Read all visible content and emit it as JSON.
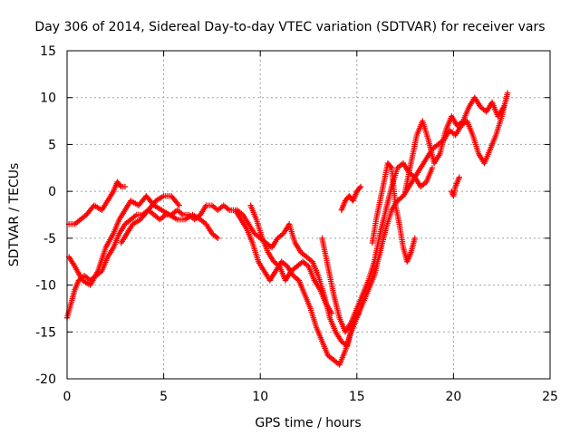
{
  "chart_data": {
    "type": "scatter",
    "title": "Day 306 of 2014, Sidereal Day-to-day VTEC variation (SDTVAR) for receiver vars",
    "xlabel": "GPS time / hours",
    "ylabel": "SDTVAR / TECUs",
    "xlim": [
      0,
      25
    ],
    "ylim": [
      -20,
      15
    ],
    "xticks": [
      "0",
      "5",
      "10",
      "15",
      "20",
      "25"
    ],
    "yticks": [
      "15",
      "10",
      "5",
      "0",
      "-5",
      "-10",
      "-15",
      "-20"
    ],
    "grid": true,
    "marker": "+",
    "series": [
      {
        "name": "trace-a",
        "color": "#ff0000",
        "x": [
          0.0,
          0.2,
          0.4,
          0.6,
          0.9,
          1.2,
          1.5,
          1.8,
          2.1,
          2.4,
          2.7,
          3.0,
          3.3,
          3.6,
          3.9,
          4.2,
          4.5,
          4.8,
          5.1,
          5.4,
          5.7,
          6.0,
          6.3,
          6.6,
          6.9,
          7.2,
          7.5,
          7.8,
          8.1,
          8.4,
          8.7,
          9.0,
          9.3,
          9.6,
          9.9,
          10.2,
          10.5,
          10.8,
          11.1,
          11.4,
          11.7,
          12.0,
          12.3,
          12.6,
          12.9,
          13.2,
          13.5,
          13.8,
          14.1,
          14.4,
          14.7,
          15.0,
          15.3,
          15.6,
          15.9,
          16.2,
          16.5,
          16.8,
          17.1,
          17.4,
          17.7,
          18.0,
          18.3,
          18.6,
          18.9,
          19.2,
          19.5,
          19.8,
          20.1,
          20.4,
          20.7,
          21.0,
          21.3,
          21.6,
          21.9,
          22.2,
          22.5,
          22.8
        ],
        "y": [
          -13.5,
          -12.0,
          -10.5,
          -9.5,
          -9.0,
          -9.5,
          -9.0,
          -8.5,
          -7.0,
          -6.0,
          -4.5,
          -3.5,
          -3.0,
          -2.5,
          -2.5,
          -2.0,
          -2.5,
          -3.0,
          -2.5,
          -2.5,
          -2.0,
          -2.5,
          -2.5,
          -3.0,
          -2.5,
          -1.5,
          -1.5,
          -2.0,
          -1.5,
          -2.0,
          -2.0,
          -3.0,
          -4.0,
          -5.5,
          -7.5,
          -8.5,
          -9.5,
          -8.5,
          -7.5,
          -8.0,
          -9.0,
          -9.5,
          -11.0,
          -12.5,
          -14.5,
          -16.0,
          -17.5,
          -18.0,
          -18.5,
          -17.0,
          -15.0,
          -13.5,
          -12.0,
          -10.5,
          -9.0,
          -6.5,
          -4.0,
          -2.0,
          -1.0,
          -0.5,
          0.5,
          1.5,
          2.5,
          3.5,
          4.5,
          5.0,
          5.5,
          6.5,
          6.0,
          7.0,
          7.5,
          6.0,
          4.0,
          3.0,
          4.5,
          6.0,
          8.0,
          10.5
        ]
      },
      {
        "name": "trace-b",
        "color": "#ff0000",
        "x": [
          0.1,
          0.4,
          0.8,
          1.2,
          1.6,
          2.0,
          2.4,
          2.7,
          3.0,
          3.3,
          3.7,
          4.1,
          4.5,
          4.9,
          5.3,
          5.7,
          6.1,
          6.5,
          6.9,
          7.2,
          7.5,
          7.8
        ],
        "y": [
          -7.0,
          -8.0,
          -9.5,
          -10.0,
          -8.5,
          -6.0,
          -4.5,
          -3.0,
          -2.0,
          -1.0,
          -1.5,
          -0.5,
          -1.5,
          -2.0,
          -2.5,
          -3.0,
          -3.0,
          -2.5,
          -3.0,
          -3.5,
          -4.5,
          -5.0
        ]
      },
      {
        "name": "trace-c",
        "color": "#ff0000",
        "x": [
          0.1,
          0.4,
          0.7,
          1.0,
          1.4,
          1.8,
          2.1,
          2.4,
          2.6,
          2.8,
          3.0
        ],
        "y": [
          -3.5,
          -3.5,
          -3.0,
          -2.5,
          -1.5,
          -2.0,
          -1.0,
          0.0,
          1.0,
          0.5,
          0.5
        ]
      },
      {
        "name": "trace-d",
        "color": "#ff0000",
        "x": [
          2.8,
          3.1,
          3.4,
          3.8,
          4.2,
          4.6,
          5.0,
          5.4,
          5.8
        ],
        "y": [
          -5.5,
          -4.5,
          -3.5,
          -3.0,
          -2.0,
          -1.0,
          -0.5,
          -0.5,
          -1.5
        ]
      },
      {
        "name": "trace-e",
        "color": "#ff0000",
        "x": [
          8.8,
          9.1,
          9.4,
          9.7,
          10.0,
          10.3,
          10.6,
          10.9,
          11.2,
          11.5,
          11.8,
          12.1,
          12.4,
          12.7,
          13.0,
          13.3,
          13.6,
          13.9,
          14.2,
          14.5,
          14.8,
          15.1
        ],
        "y": [
          -2.0,
          -2.5,
          -3.5,
          -4.5,
          -5.0,
          -5.5,
          -6.0,
          -5.0,
          -4.5,
          -3.5,
          -5.5,
          -6.5,
          -7.0,
          -7.5,
          -9.0,
          -11.0,
          -13.5,
          -15.0,
          -16.0,
          -16.5,
          -14.0,
          -13.0
        ]
      },
      {
        "name": "trace-f",
        "color": "#ff0000",
        "x": [
          9.5,
          9.8,
          10.1,
          10.4,
          10.7,
          11.0,
          11.3,
          11.6,
          11.9,
          12.2,
          12.5,
          12.8,
          13.1,
          13.4,
          13.7
        ],
        "y": [
          -1.5,
          -3.0,
          -5.0,
          -6.5,
          -7.5,
          -8.0,
          -9.5,
          -8.5,
          -8.0,
          -7.5,
          -8.0,
          -9.5,
          -10.5,
          -12.0,
          -13.0
        ]
      },
      {
        "name": "trace-g",
        "color": "#ff0000",
        "x": [
          13.2,
          13.5,
          13.8,
          14.1,
          14.4,
          14.7,
          15.0,
          15.3,
          15.6,
          15.9,
          16.2,
          16.5,
          16.8,
          17.1,
          17.4,
          17.7,
          18.0,
          18.3,
          18.6,
          18.9
        ],
        "y": [
          -5.0,
          -8.0,
          -11.0,
          -13.5,
          -15.0,
          -14.0,
          -12.5,
          -11.0,
          -9.5,
          -7.5,
          -4.5,
          -2.0,
          0.5,
          2.5,
          3.0,
          2.0,
          1.5,
          0.5,
          1.0,
          2.5
        ]
      },
      {
        "name": "trace-h",
        "color": "#ff0000",
        "x": [
          14.2,
          14.4,
          14.6,
          14.8,
          15.0,
          15.2
        ],
        "y": [
          -2.0,
          -1.0,
          -0.5,
          -1.0,
          0.0,
          0.5
        ]
      },
      {
        "name": "trace-i",
        "color": "#ff0000",
        "x": [
          15.8,
          16.0,
          16.2,
          16.4,
          16.6,
          16.8,
          17.0,
          17.2,
          17.4,
          17.6,
          17.8,
          18.0
        ],
        "y": [
          -5.5,
          -3.0,
          -1.0,
          1.0,
          3.0,
          2.5,
          -1.5,
          -3.5,
          -6.0,
          -7.5,
          -6.5,
          -5.0
        ]
      },
      {
        "name": "trace-j",
        "color": "#ff0000",
        "x": [
          17.5,
          17.8,
          18.1,
          18.4,
          18.7,
          19.0,
          19.3,
          19.6,
          19.9,
          20.2,
          20.5,
          20.8,
          21.1,
          21.4,
          21.7,
          22.0,
          22.3,
          22.6
        ],
        "y": [
          0.0,
          3.0,
          6.0,
          7.5,
          5.5,
          3.0,
          4.0,
          6.5,
          8.0,
          7.0,
          7.5,
          9.0,
          10.0,
          9.0,
          8.5,
          9.5,
          8.0,
          9.0
        ]
      },
      {
        "name": "trace-k",
        "color": "#ff0000",
        "x": [
          19.9,
          20.0,
          20.1,
          20.2,
          20.3
        ],
        "y": [
          0.0,
          -0.5,
          0.5,
          1.0,
          1.5
        ]
      }
    ]
  }
}
